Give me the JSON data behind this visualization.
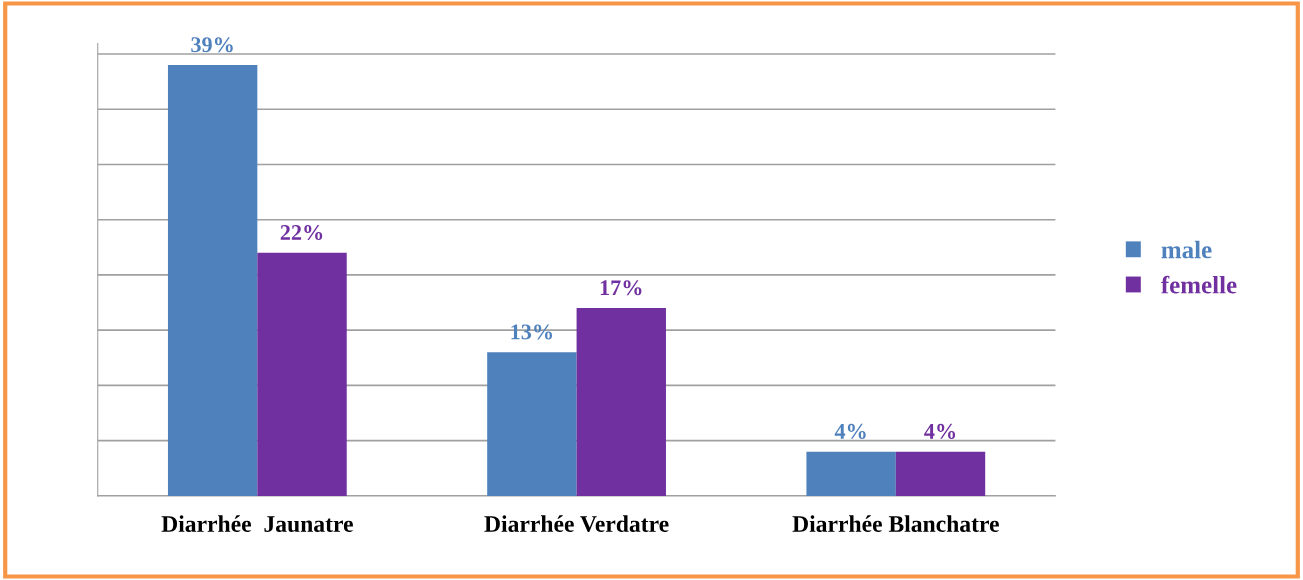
{
  "chart_data": {
    "type": "bar",
    "categories": [
      "Diarrhée  Jaunatre",
      "Diarrhée Verdatre",
      "Diarrhée Blanchatre"
    ],
    "series": [
      {
        "name": "male",
        "color": "#4f81bd",
        "values": [
          39,
          13,
          4
        ],
        "value_labels": [
          "39%",
          "13%",
          "4%"
        ]
      },
      {
        "name": "femelle",
        "color": "#7030a0",
        "values": [
          22,
          17,
          4
        ],
        "value_labels": [
          "22%",
          "17%",
          "4%"
        ]
      }
    ],
    "grid": "y",
    "legend": "right",
    "tick_labels": "x"
  }
}
